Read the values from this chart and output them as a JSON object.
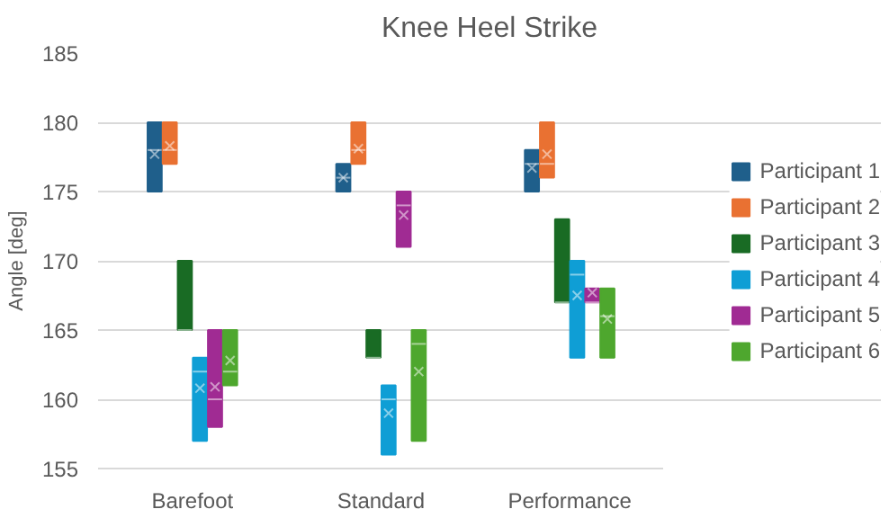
{
  "chart_data": {
    "type": "box",
    "title": "Knee Heel Strike",
    "ylabel": "Angle [deg]",
    "categories": [
      "Barefoot",
      "Standard",
      "Performance"
    ],
    "ylim": [
      155,
      185
    ],
    "yticks": [
      155,
      160,
      165,
      170,
      175,
      180,
      185
    ],
    "grid": "y",
    "legend": "right",
    "series": [
      {
        "name": "Participant 1",
        "color": "#1f5f8b",
        "boxes": [
          {
            "low": 175,
            "q1": 175,
            "median": 178,
            "q3": 180,
            "high": 180,
            "mean": 177.7
          },
          {
            "low": 175,
            "q1": 175,
            "median": 176,
            "q3": 177,
            "high": 177,
            "mean": 176
          },
          {
            "low": 175,
            "q1": 175,
            "median": 177,
            "q3": 178,
            "high": 178,
            "mean": 176.7
          }
        ]
      },
      {
        "name": "Participant 2",
        "color": "#e97132",
        "boxes": [
          {
            "low": 177,
            "q1": 177,
            "median": 178,
            "q3": 180,
            "high": 180,
            "mean": 178.3
          },
          {
            "low": 177,
            "q1": 177,
            "median": 178,
            "q3": 180,
            "high": 180,
            "mean": 178.1
          },
          {
            "low": 176,
            "q1": 176,
            "median": 177,
            "q3": 180,
            "high": 180,
            "mean": 177.7
          }
        ]
      },
      {
        "name": "Participant 3",
        "color": "#196b24",
        "boxes": [
          {
            "low": 165,
            "q1": 165,
            "median": 165,
            "q3": 170,
            "high": 170
          },
          {
            "low": 163,
            "q1": 163,
            "median": 163,
            "q3": 165,
            "high": 165
          },
          {
            "low": 167,
            "q1": 167,
            "median": 167,
            "q3": 173,
            "high": 173
          }
        ]
      },
      {
        "name": "Participant 4",
        "color": "#0f9ed5",
        "boxes": [
          {
            "low": 157,
            "q1": 157,
            "median": 162,
            "q3": 163,
            "high": 163,
            "mean": 160.8
          },
          {
            "low": 156,
            "q1": 156,
            "median": 160,
            "q3": 161,
            "high": 161,
            "mean": 159
          },
          {
            "low": 163,
            "q1": 163,
            "median": 169,
            "q3": 170,
            "high": 170,
            "mean": 167.5
          }
        ]
      },
      {
        "name": "Participant 5",
        "color": "#a02b93",
        "boxes": [
          {
            "low": 158,
            "q1": 158,
            "median": 160,
            "q3": 165,
            "high": 165,
            "mean": 160.9
          },
          {
            "low": 171,
            "q1": 171,
            "median": 174,
            "q3": 175,
            "high": 175,
            "mean": 173.3
          },
          {
            "low": 167,
            "q1": 167,
            "median": 167,
            "q3": 168,
            "high": 168,
            "mean": 167.7
          }
        ]
      },
      {
        "name": "Participant 6",
        "color": "#4ea72e",
        "boxes": [
          {
            "low": 161,
            "q1": 161,
            "median": 162,
            "q3": 165,
            "high": 165,
            "mean": 162.8
          },
          {
            "low": 157,
            "q1": 157,
            "median": 164,
            "q3": 165,
            "high": 165,
            "mean": 162
          },
          {
            "low": 163,
            "q1": 163,
            "median": 166,
            "q3": 168,
            "high": 168,
            "mean": 165.8
          }
        ]
      }
    ]
  }
}
